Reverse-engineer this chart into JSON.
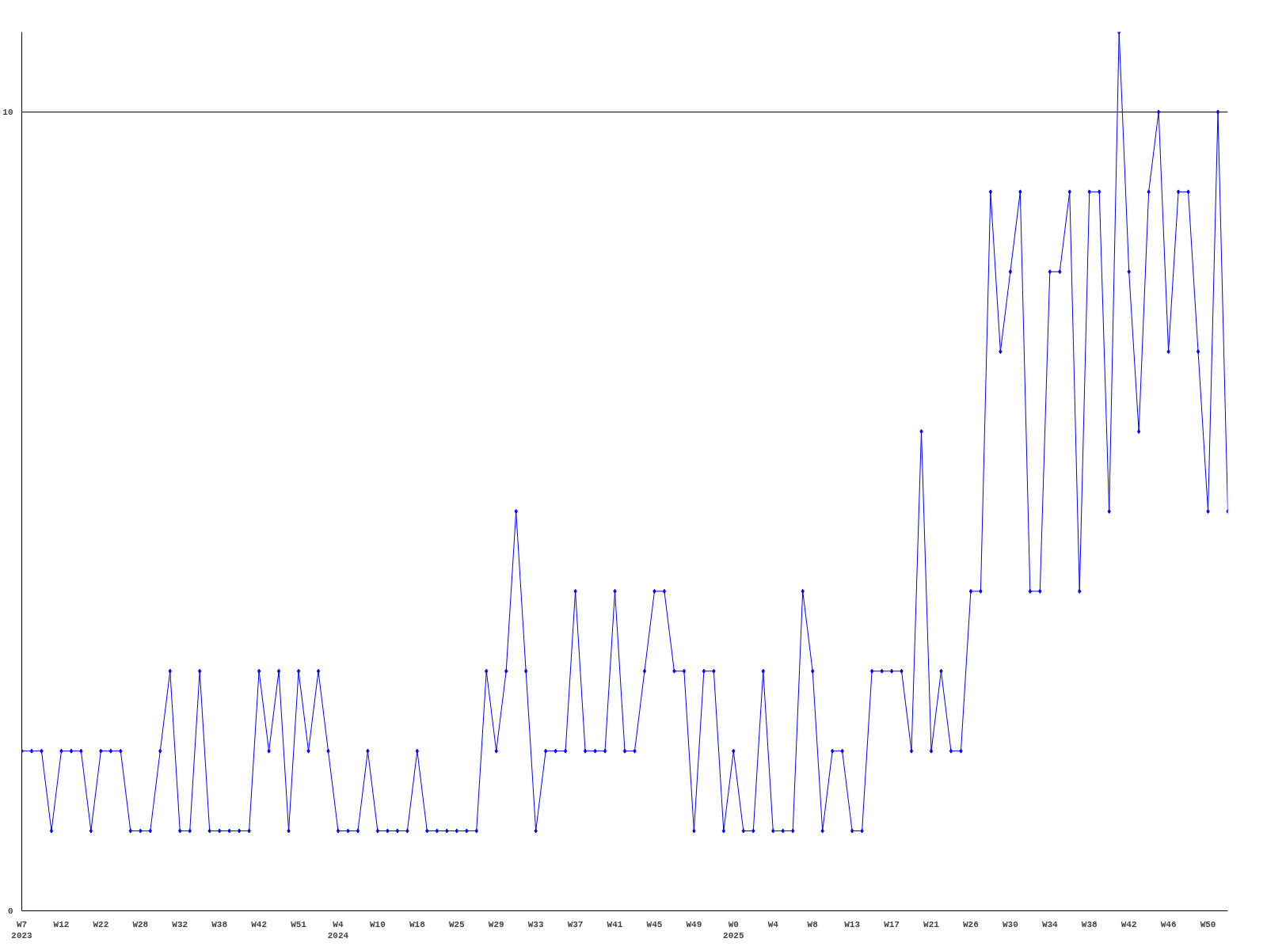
{
  "chart_data": {
    "type": "line",
    "categories": [
      "W7\n2023",
      null,
      null,
      null,
      "W12",
      null,
      null,
      null,
      "W22",
      null,
      null,
      null,
      "W28",
      null,
      null,
      null,
      "W32",
      null,
      null,
      null,
      "W38",
      null,
      null,
      null,
      "W42",
      null,
      null,
      null,
      "W51",
      null,
      null,
      null,
      "W4\n2024",
      null,
      null,
      null,
      "W10",
      null,
      null,
      null,
      "W18",
      null,
      null,
      null,
      "W25",
      null,
      null,
      null,
      "W29",
      null,
      null,
      null,
      "W33",
      null,
      null,
      null,
      "W37",
      null,
      null,
      null,
      "W41",
      null,
      null,
      null,
      "W45",
      null,
      null,
      null,
      "W49",
      null,
      null,
      null,
      "W0\n2025",
      null,
      null,
      null,
      "W4",
      null,
      null,
      null,
      "W8",
      null,
      null,
      null,
      "W13",
      null,
      null,
      null,
      "W17",
      null,
      null,
      null,
      "W21",
      null,
      null,
      null,
      "W26",
      null,
      null,
      null,
      "W30",
      null,
      null,
      null,
      "W34",
      null,
      null,
      null,
      "W38",
      null,
      null,
      null,
      "W42",
      null,
      null,
      null,
      "W46",
      null,
      null,
      null,
      "W50",
      null,
      null
    ],
    "series": [
      {
        "color": "#0000ff",
        "values": [
          2,
          2,
          2,
          1,
          2,
          2,
          2,
          1,
          2,
          2,
          2,
          1,
          1,
          1,
          2,
          3,
          1,
          1,
          3,
          1,
          1,
          1,
          1,
          1,
          3,
          2,
          3,
          1,
          3,
          2,
          3,
          2,
          1,
          1,
          1,
          2,
          1,
          1,
          1,
          1,
          2,
          1,
          1,
          1,
          1,
          1,
          1,
          3,
          2,
          3,
          5,
          3,
          1,
          2,
          2,
          2,
          4,
          2,
          2,
          2,
          4,
          2,
          2,
          3,
          4,
          4,
          3,
          3,
          1,
          3,
          3,
          1,
          2,
          1,
          1,
          3,
          1,
          1,
          1,
          4,
          3,
          1,
          2,
          2,
          1,
          1,
          3,
          3,
          3,
          3,
          2,
          6,
          2,
          3,
          2,
          2,
          4,
          4,
          9,
          7,
          8,
          9,
          4,
          4,
          8,
          8,
          9,
          4,
          9,
          9,
          5,
          11,
          8,
          6,
          9,
          10,
          7,
          9,
          9,
          7,
          5,
          10,
          5
        ]
      }
    ],
    "ylim": [
      0,
      11
    ],
    "yticks": [
      0,
      10
    ],
    "grid": "y",
    "marker": "diamond",
    "line_style": "solid"
  }
}
